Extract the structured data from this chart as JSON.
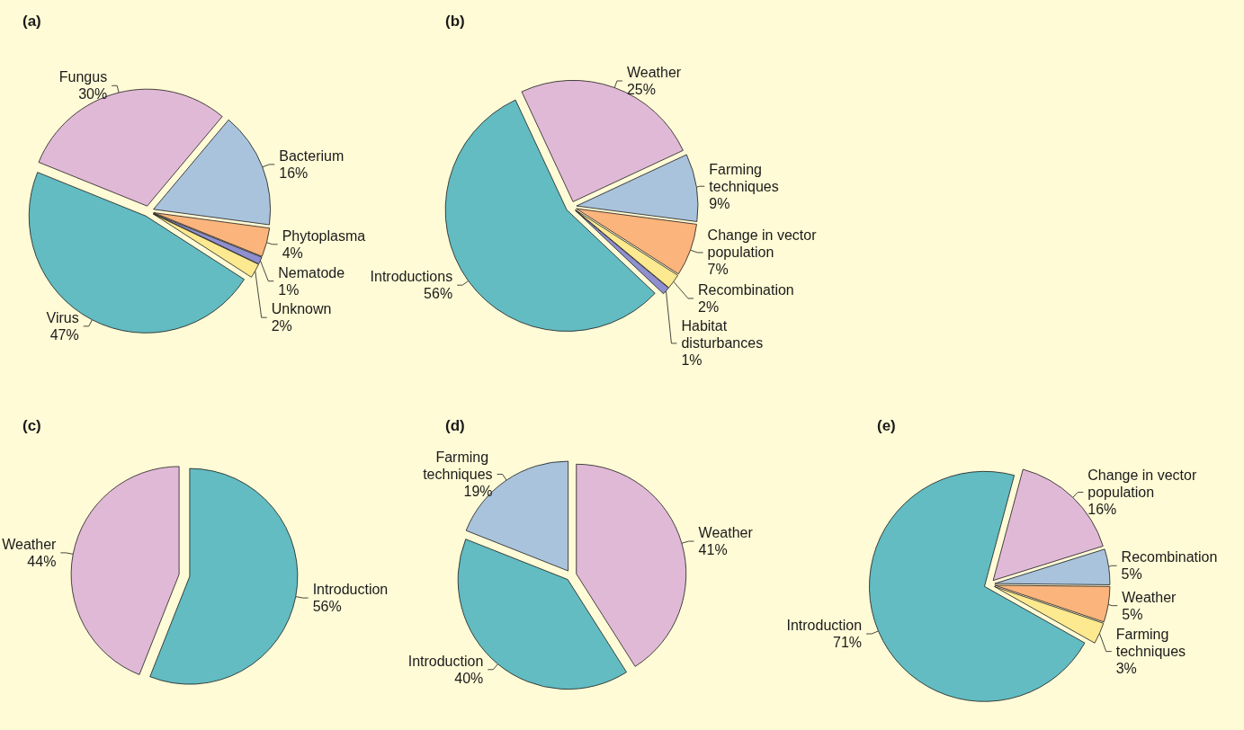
{
  "chart_data": [
    {
      "type": "pie",
      "title": "(a)",
      "categories": [
        "Fungus",
        "Bacterium",
        "Phytoplasma",
        "Nematode",
        "Unknown",
        "Virus"
      ],
      "values": [
        30,
        16,
        4,
        1,
        2,
        47
      ],
      "value_labels": [
        "30%",
        "16%",
        "4%",
        "1%",
        "2%",
        "47%"
      ],
      "colors": [
        "#e0b9d6",
        "#a9c3dc",
        "#fbb47c",
        "#8f8fd0",
        "#fce990",
        "#62bcc2"
      ]
    },
    {
      "type": "pie",
      "title": "(b)",
      "categories": [
        "Weather",
        "Farming techniques",
        "Change in vector population",
        "Recombination",
        "Habitat disturbances",
        "Introductions"
      ],
      "values": [
        25,
        9,
        7,
        2,
        1,
        56
      ],
      "value_labels": [
        "25%",
        "9%",
        "7%",
        "2%",
        "1%",
        "56%"
      ],
      "colors": [
        "#e0b9d6",
        "#a9c3dc",
        "#fbb47c",
        "#fce990",
        "#8f8fd0",
        "#62bcc2"
      ]
    },
    {
      "type": "pie",
      "title": "(c)",
      "categories": [
        "Introduction",
        "Weather"
      ],
      "values": [
        56,
        44
      ],
      "value_labels": [
        "56%",
        "44%"
      ],
      "colors": [
        "#62bcc2",
        "#e0b9d6"
      ]
    },
    {
      "type": "pie",
      "title": "(d)",
      "categories": [
        "Weather",
        "Introduction",
        "Farming techniques"
      ],
      "values": [
        41,
        40,
        19
      ],
      "value_labels": [
        "41%",
        "40%",
        "19%"
      ],
      "colors": [
        "#e0b9d6",
        "#62bcc2",
        "#a9c3dc"
      ]
    },
    {
      "type": "pie",
      "title": "(e)",
      "categories": [
        "Change in vector population",
        "Recombination",
        "Weather",
        "Farming techniques",
        "Introduction"
      ],
      "values": [
        16,
        5,
        5,
        3,
        71
      ],
      "value_labels": [
        "16%",
        "5%",
        "5%",
        "3%",
        "71%"
      ],
      "colors": [
        "#e0b9d6",
        "#a9c3dc",
        "#fbb47c",
        "#fce990",
        "#62bcc2"
      ]
    }
  ]
}
